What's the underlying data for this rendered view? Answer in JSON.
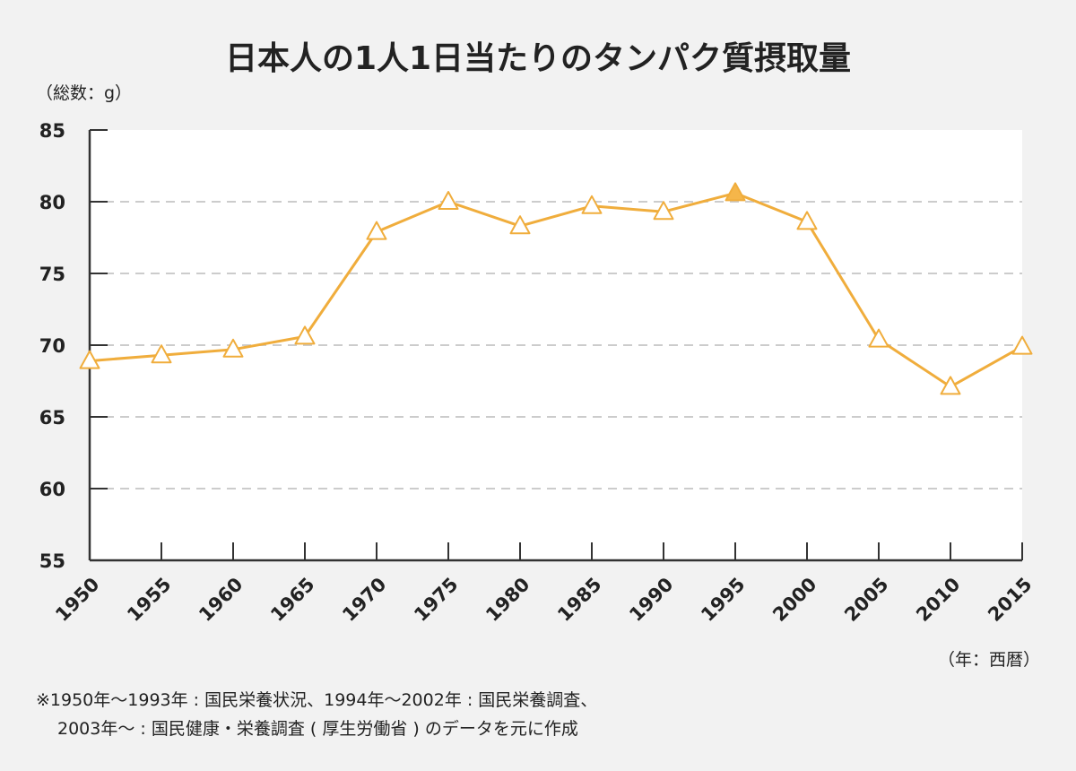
{
  "chart_data": {
    "type": "line",
    "title": "日本人の1人1日当たりのタンパク質摂取量",
    "ylabel": "（総数：g）",
    "xlabel": "（年：西暦）",
    "ylim": [
      55,
      85
    ],
    "yticks": [
      55,
      60,
      65,
      70,
      75,
      80,
      85
    ],
    "grid": true,
    "categories": [
      "1950",
      "1955",
      "1960",
      "1965",
      "1970",
      "1975",
      "1980",
      "1985",
      "1990",
      "1995",
      "2000",
      "2005",
      "2010",
      "2015"
    ],
    "series": [
      {
        "values": [
          68.9,
          69.3,
          69.7,
          70.6,
          77.9,
          80.0,
          78.3,
          79.7,
          79.3,
          80.6,
          78.6,
          70.4,
          67.1,
          69.9
        ],
        "highlight_index": 9
      }
    ],
    "colors": {
      "line": "#f0ad3c",
      "marker_fill": "#ffffff",
      "marker_highlight": "#f5b64a",
      "grid": "#cccccc",
      "axis": "#333333",
      "plot_bg": "#ffffff",
      "page_bg": "#f2f2f2"
    }
  },
  "notes": [
    "※1950年〜1993年 : 国民栄養状況、1994年〜2002年 : 国民栄養調査、",
    "2003年〜 : 国民健康・栄養調査 ( 厚生労働省 ) のデータを元に作成"
  ]
}
